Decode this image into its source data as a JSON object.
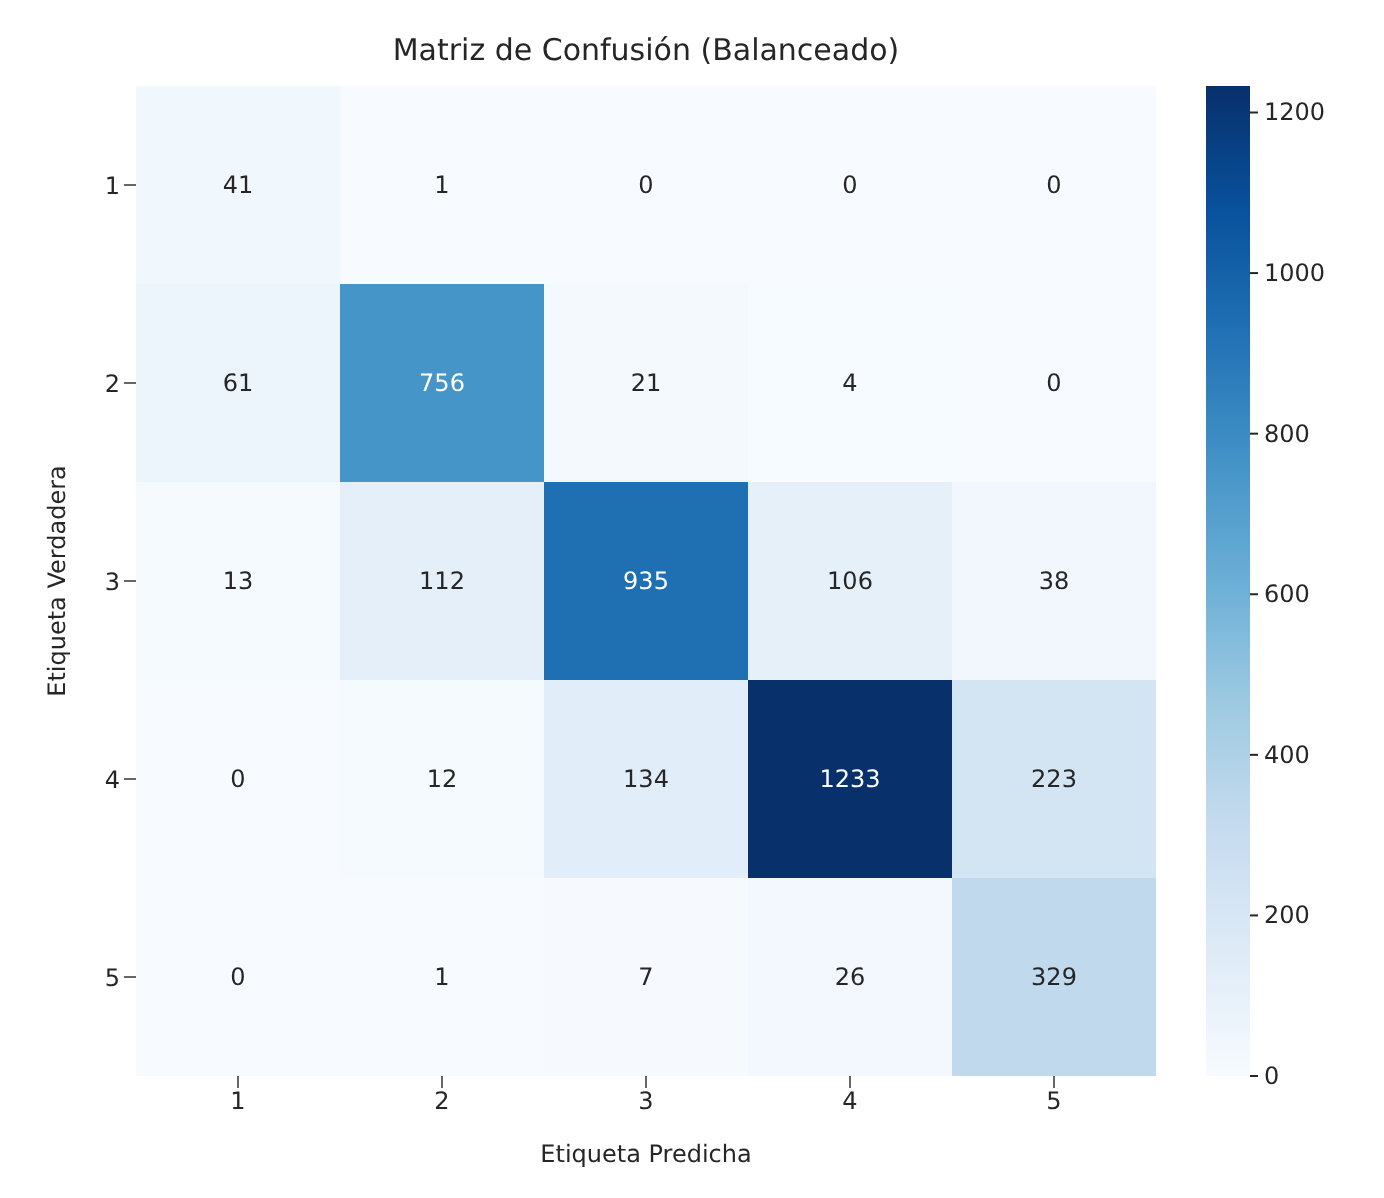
{
  "chart_data": {
    "type": "heatmap",
    "title": "Matriz de Confusión (Balanceado)",
    "xlabel": "Etiqueta Predicha",
    "ylabel": "Etiqueta Verdadera",
    "categories": [
      "1",
      "2",
      "3",
      "4",
      "5"
    ],
    "y_categories": [
      "1",
      "2",
      "3",
      "4",
      "5"
    ],
    "cells": [
      [
        41,
        1,
        0,
        0,
        0
      ],
      [
        61,
        756,
        21,
        4,
        0
      ],
      [
        13,
        112,
        935,
        106,
        38
      ],
      [
        0,
        12,
        134,
        1233,
        223
      ],
      [
        0,
        1,
        7,
        26,
        329
      ]
    ],
    "clim": [
      0,
      1233
    ],
    "cticks": [
      0,
      200,
      400,
      600,
      800,
      1000,
      1200
    ],
    "data_labels": true
  }
}
